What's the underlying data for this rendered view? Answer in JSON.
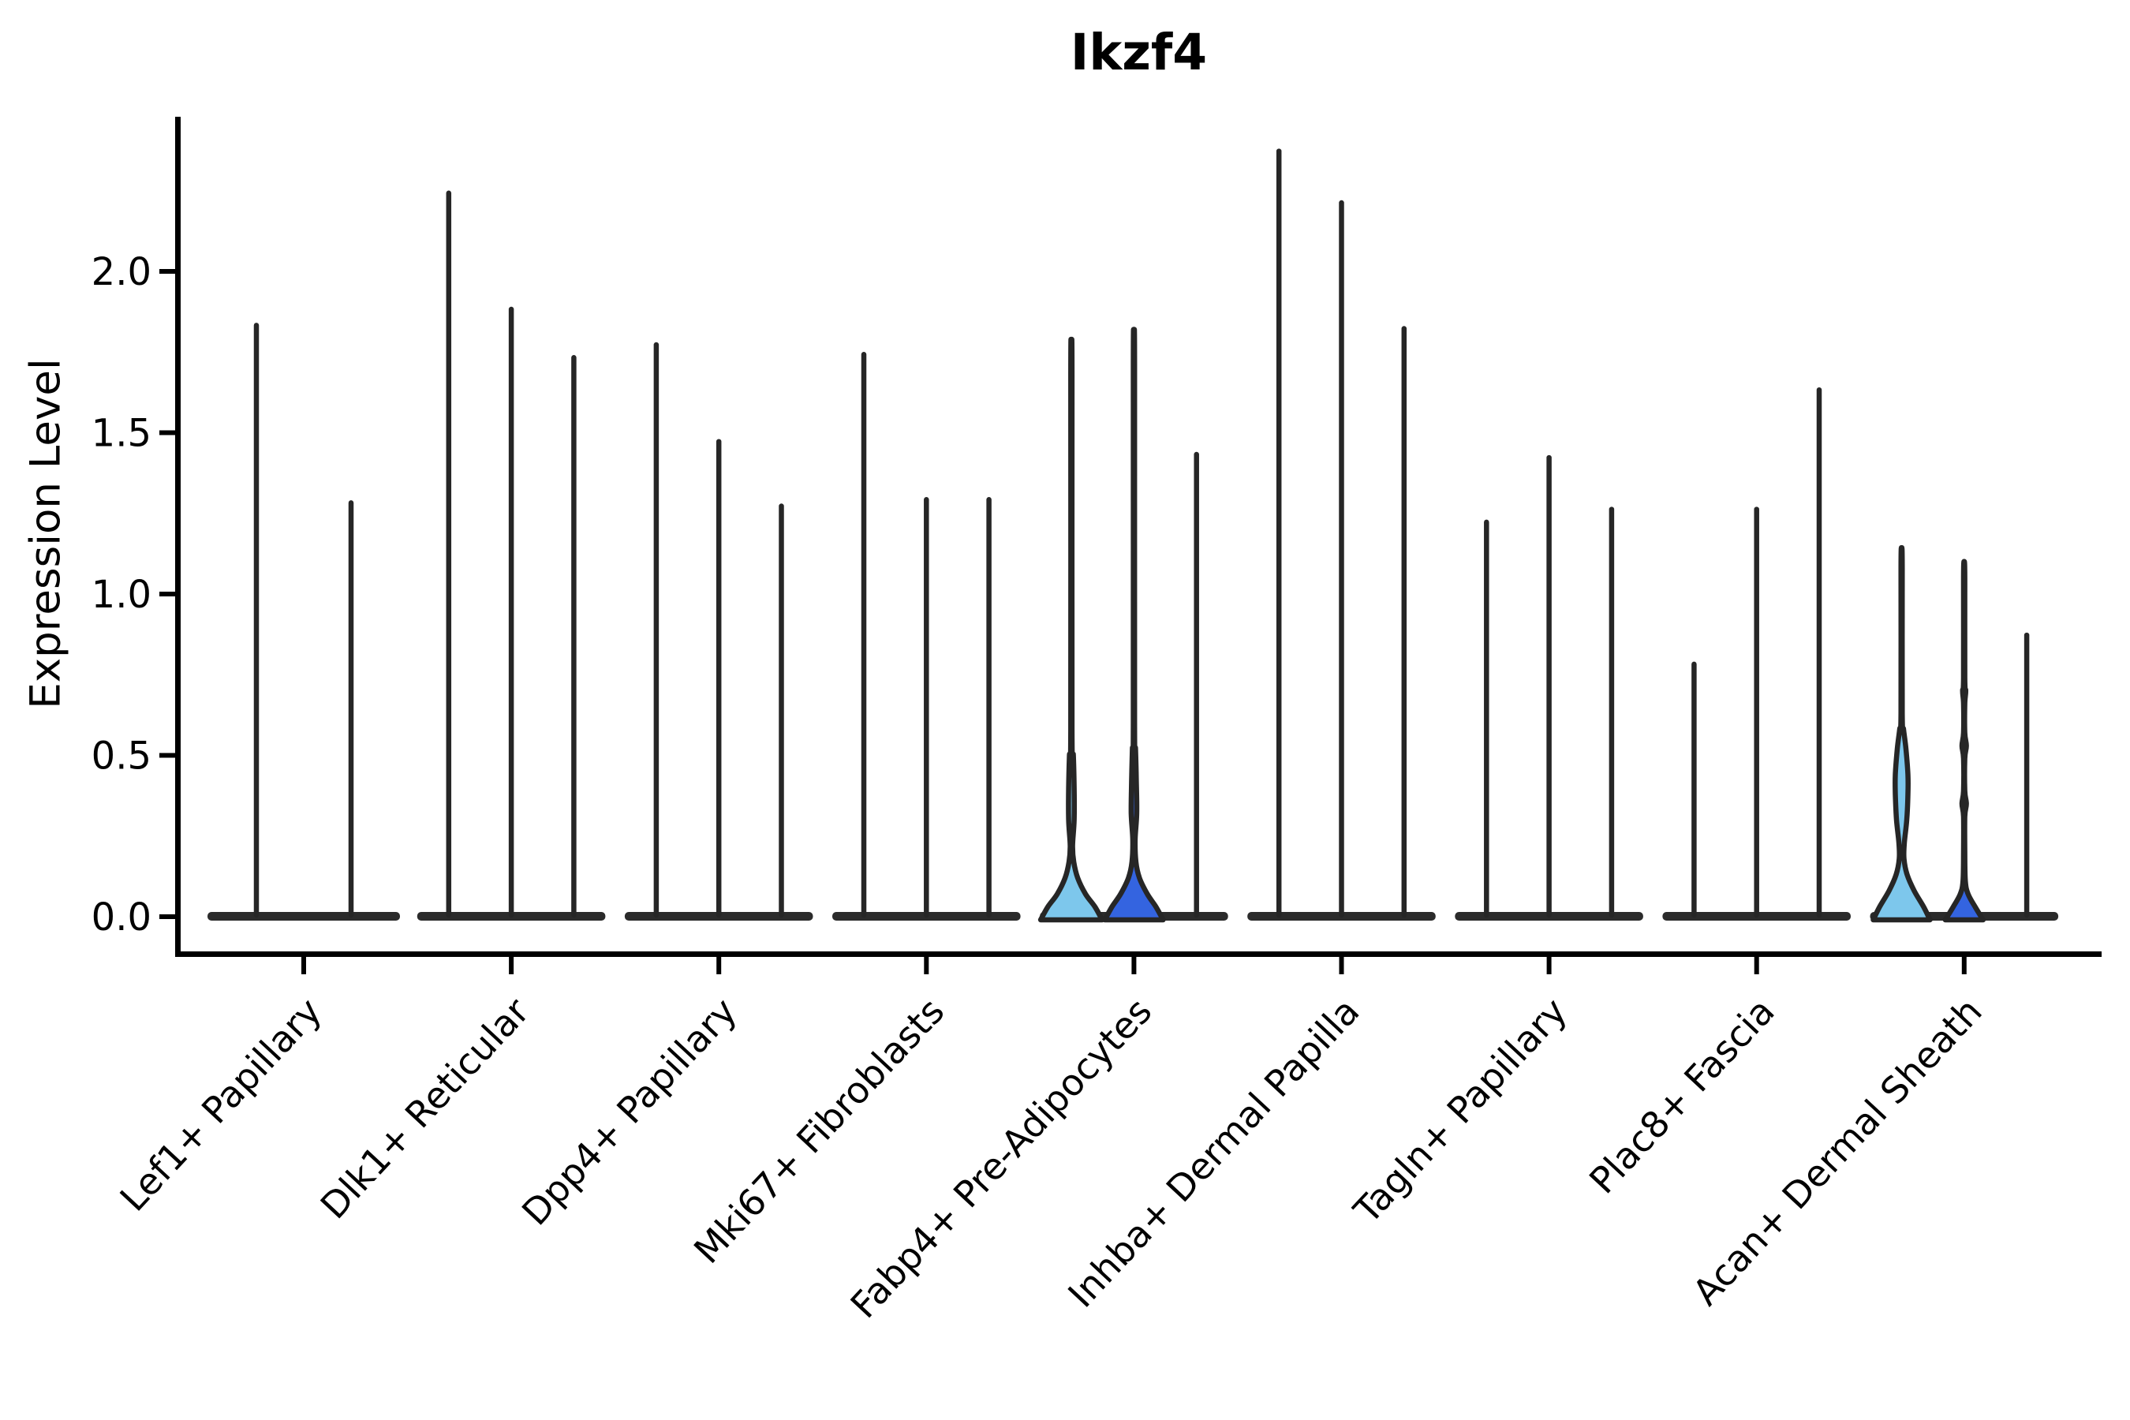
{
  "chart_data": {
    "type": "violin",
    "title": "Ikzf4",
    "ylabel": "Expression Level",
    "xlabel": "",
    "yticks": [
      "0.0",
      "0.5",
      "1.0",
      "1.5",
      "2.0"
    ],
    "ytick_values": [
      0.0,
      0.5,
      1.0,
      1.5,
      2.0
    ],
    "ylim": [
      -0.12,
      2.47
    ],
    "legend": "none",
    "grid": false,
    "colors": {
      "skyblue": "#7DC7EC",
      "royalblue": "#3464E0",
      "outline": "#262626",
      "baseline": "#2B2B2B",
      "spine": "#000000"
    },
    "groups": [
      {
        "label": "Lef1+ Papillary",
        "violins": [
          {
            "max": 1.84
          },
          {
            "max": 1.29
          }
        ]
      },
      {
        "label": "Dlk1+ Reticular",
        "violins": [
          {
            "max": 2.25
          },
          {
            "max": 1.89
          },
          {
            "max": 1.74
          }
        ]
      },
      {
        "label": "Dpp4+ Papillary",
        "violins": [
          {
            "max": 1.78
          },
          {
            "max": 1.48
          },
          {
            "max": 1.28
          }
        ]
      },
      {
        "label": "Mki67+ Fibroblasts",
        "violins": [
          {
            "max": 1.75
          },
          {
            "max": 1.3
          },
          {
            "max": 1.3
          }
        ]
      },
      {
        "label": "Fabp4+ Pre-Adipocytes",
        "violins": [
          {
            "max": 1.75,
            "fill": "skyblue",
            "profile": [
              [
                0,
                39
              ],
              [
                0.03,
                30
              ],
              [
                0.07,
                18
              ],
              [
                0.12,
                8
              ],
              [
                0.17,
                3
              ],
              [
                0.22,
                1.5
              ],
              [
                0.3,
                3.5
              ],
              [
                0.4,
                3.5
              ],
              [
                0.5,
                2.5
              ],
              [
                0.58,
                0.8
              ],
              [
                1.68,
                0.8
              ],
              [
                1.75,
                0
              ]
            ]
          },
          {
            "max": 1.78,
            "fill": "royalblue",
            "profile": [
              [
                0,
                37
              ],
              [
                0.03,
                28
              ],
              [
                0.07,
                17
              ],
              [
                0.12,
                7
              ],
              [
                0.17,
                2.5
              ],
              [
                0.24,
                1.5
              ],
              [
                0.32,
                3.5
              ],
              [
                0.42,
                3
              ],
              [
                0.52,
                2
              ],
              [
                0.6,
                0.8
              ],
              [
                1.71,
                0.8
              ],
              [
                1.78,
                0
              ]
            ]
          },
          {
            "max": 1.44
          }
        ]
      },
      {
        "label": "Inhba+ Dermal Papilla",
        "violins": [
          {
            "max": 2.38
          },
          {
            "max": 2.22
          },
          {
            "max": 1.83
          }
        ]
      },
      {
        "label": "Tagln+ Papillary",
        "violins": [
          {
            "max": 1.23
          },
          {
            "max": 1.43
          },
          {
            "max": 1.27
          }
        ]
      },
      {
        "label": "Plac8+ Fascia",
        "violins": [
          {
            "max": 0.79
          },
          {
            "max": 1.27
          },
          {
            "max": 1.64
          }
        ]
      },
      {
        "label": "Acan+ Dermal Sheath",
        "violins": [
          {
            "max": 1.14,
            "fill": "skyblue",
            "profile": [
              [
                0,
                36
              ],
              [
                0.03,
                28
              ],
              [
                0.08,
                16
              ],
              [
                0.13,
                7
              ],
              [
                0.18,
                3
              ],
              [
                0.23,
                3.5
              ],
              [
                0.3,
                6.5
              ],
              [
                0.38,
                8
              ],
              [
                0.44,
                8
              ],
              [
                0.52,
                5.5
              ],
              [
                0.58,
                2.5
              ],
              [
                0.63,
                0.8
              ],
              [
                1.08,
                0.8
              ],
              [
                1.14,
                0
              ]
            ]
          },
          {
            "max": 1.1,
            "fill": "royalblue",
            "profile": [
              [
                0,
                24
              ],
              [
                0.03,
                14
              ],
              [
                0.07,
                5
              ],
              [
                0.11,
                1.5
              ],
              [
                0.2,
                0.8
              ],
              [
                0.31,
                0.8
              ],
              [
                0.35,
                2.8
              ],
              [
                0.39,
                0.8
              ],
              [
                0.49,
                0.8
              ],
              [
                0.53,
                2.8
              ],
              [
                0.57,
                0.8
              ],
              [
                0.66,
                0.8
              ],
              [
                0.7,
                2
              ],
              [
                0.74,
                0.8
              ],
              [
                1.05,
                0.8
              ],
              [
                1.1,
                0
              ]
            ]
          },
          {
            "max": 0.88
          }
        ]
      }
    ]
  }
}
